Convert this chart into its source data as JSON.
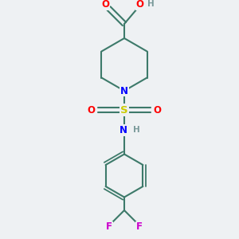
{
  "bg_color": "#eef1f3",
  "bond_color": "#3d7a6a",
  "bond_width": 1.5,
  "atom_colors": {
    "O": "#ff0000",
    "N": "#0000ff",
    "S": "#cccc00",
    "F": "#cc00cc",
    "H": "#7a9a9a",
    "C": "#3d7a6a"
  },
  "font_size": 8.5
}
